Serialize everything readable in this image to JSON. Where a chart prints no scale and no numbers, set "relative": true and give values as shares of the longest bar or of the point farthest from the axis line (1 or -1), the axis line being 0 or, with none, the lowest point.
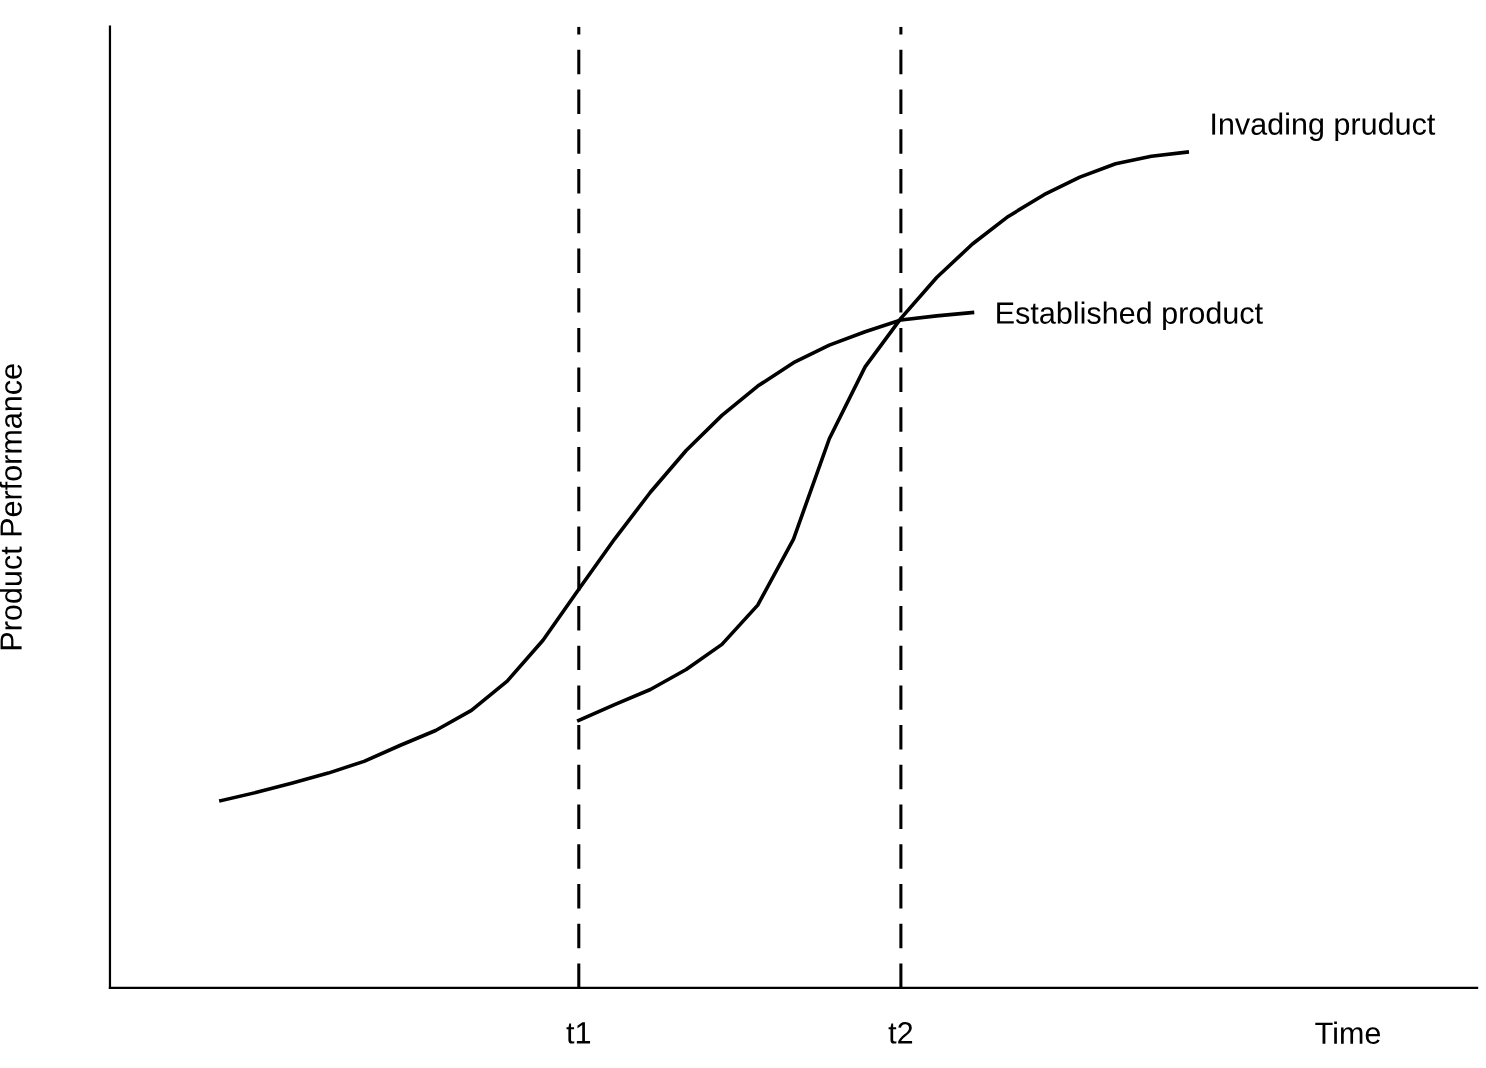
{
  "chart_data": {
    "type": "line",
    "relative": true,
    "xlabel": "Time",
    "ylabel": "Product Performance",
    "categories": [
      null,
      null,
      null,
      null,
      null,
      null,
      null,
      null,
      null,
      null,
      null,
      null,
      "t1",
      null,
      null,
      null,
      null,
      null,
      null,
      null,
      null,
      "t2",
      null,
      null,
      null,
      null,
      null,
      null,
      null,
      null,
      null,
      null,
      null,
      null,
      null,
      null,
      null,
      null
    ],
    "series": [
      {
        "name": "Established product",
        "color": "#000000",
        "values": [
          null,
          null,
          0.224,
          0.234,
          0.245,
          0.257,
          0.271,
          0.29,
          0.308,
          0.332,
          0.367,
          0.416,
          0.477,
          0.537,
          0.593,
          0.643,
          0.685,
          0.72,
          0.748,
          0.769,
          0.785,
          0.799,
          0.804,
          0.808,
          null,
          null,
          null,
          null,
          null,
          null,
          null,
          null,
          null,
          null,
          null,
          null,
          null,
          null
        ]
      },
      {
        "name": "Invading pruduct",
        "color": "#000000",
        "values": [
          null,
          null,
          null,
          null,
          null,
          null,
          null,
          null,
          null,
          null,
          null,
          null,
          0.32,
          0.339,
          0.357,
          0.381,
          0.411,
          0.458,
          0.537,
          0.657,
          0.743,
          0.801,
          0.85,
          0.89,
          0.923,
          0.949,
          0.97,
          0.986,
          0.995,
          1,
          null,
          null,
          null,
          null,
          null,
          null,
          null,
          null
        ]
      }
    ],
    "ref_lines": [
      {
        "axis": "x",
        "value": "t1",
        "color": "#000000",
        "line_style": "dashed"
      },
      {
        "axis": "x",
        "value": "t2",
        "color": "#000000",
        "line_style": "dashed"
      }
    ],
    "grid": false,
    "legend": false,
    "marker": "none",
    "line_style": "solid"
  }
}
